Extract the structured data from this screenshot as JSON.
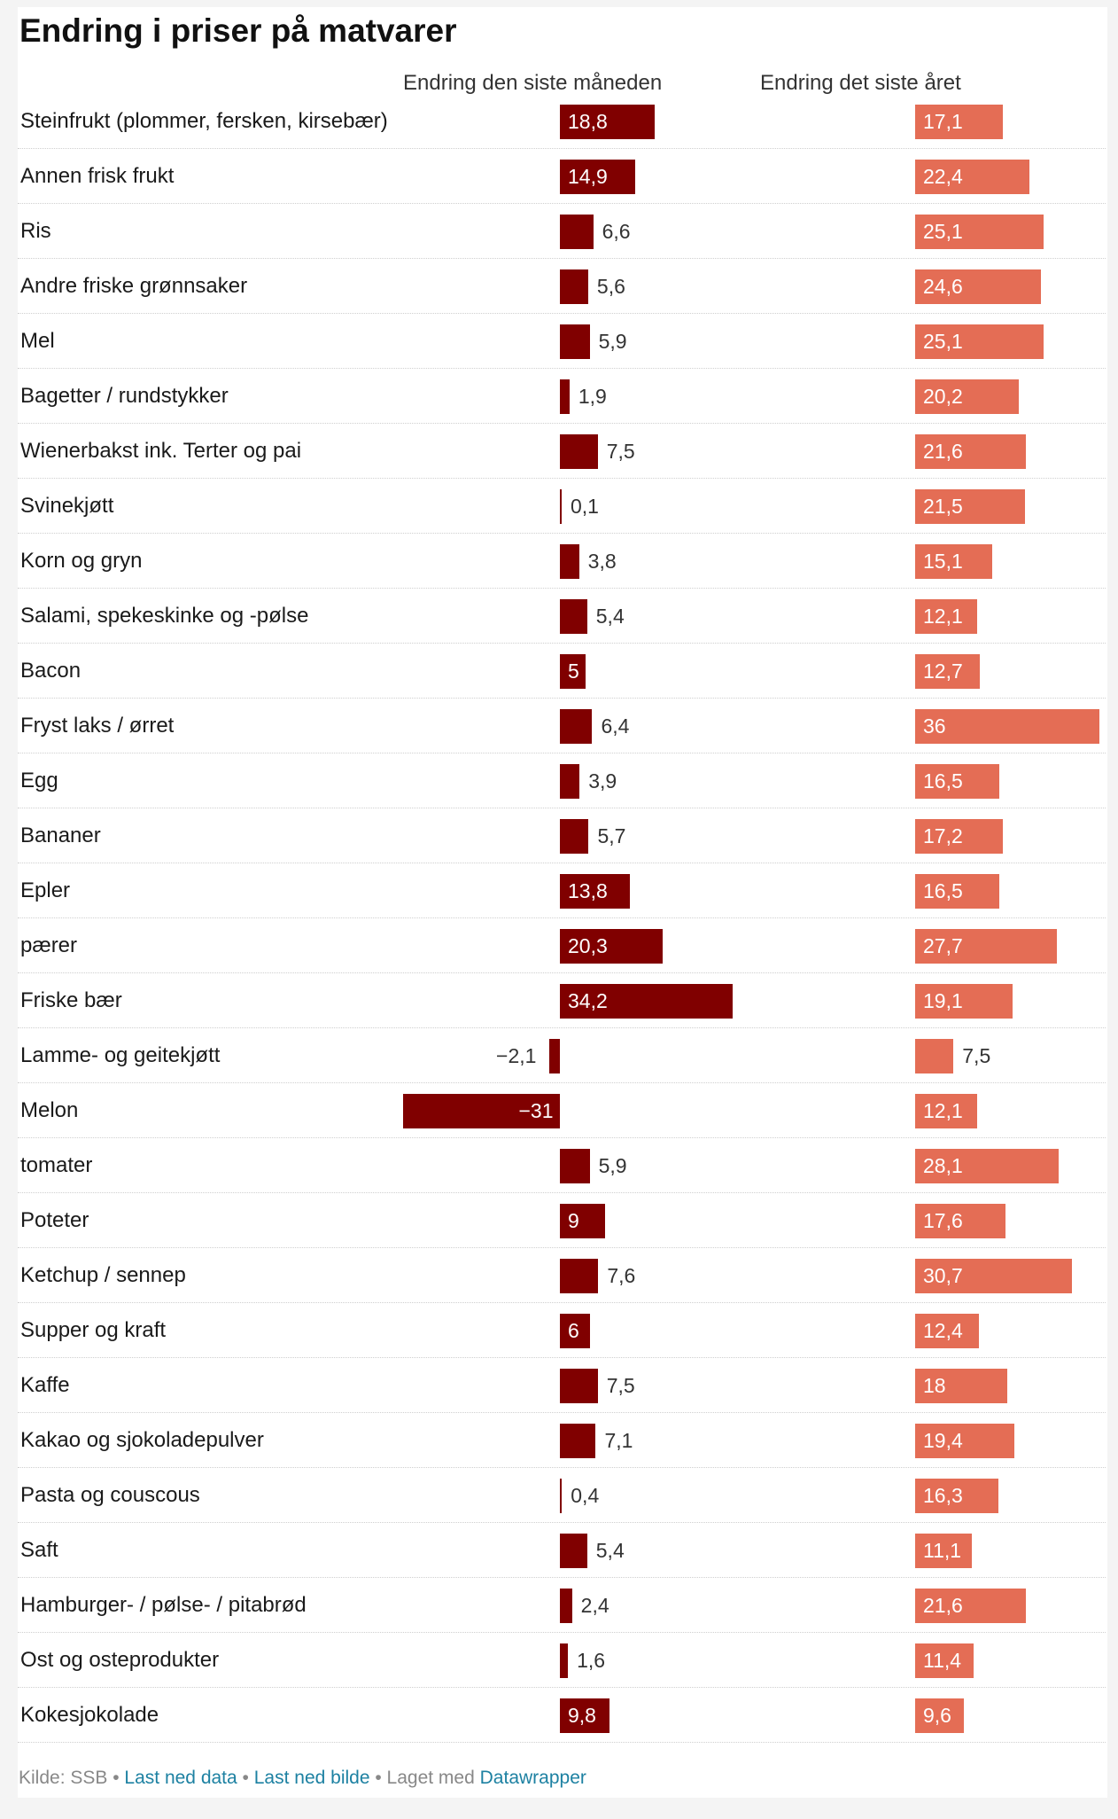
{
  "chart_data": {
    "type": "bar",
    "title": "Endring i priser på matvarer",
    "categories": [
      "Steinfrukt (plommer, fersken, kirsebær)",
      "Annen frisk frukt",
      "Ris",
      "Andre friske grønnsaker",
      "Mel",
      "Bagetter / rundstykker",
      "Wienerbakst ink. Terter og pai",
      "Svinekjøtt",
      "Korn og gryn",
      "Salami, spekeskinke og -pølse",
      "Bacon",
      "Fryst laks / ørret",
      "Egg",
      "Bananer",
      "Epler",
      "pærer",
      "Friske bær",
      "Lamme- og geitekjøtt",
      "Melon",
      "tomater",
      "Poteter",
      "Ketchup / sennep",
      "Supper og kraft",
      "Kaffe",
      "Kakao og sjokoladepulver",
      "Pasta og couscous",
      "Saft",
      "Hamburger- / pølse- / pitabrød",
      "Ost og osteprodukter",
      "Kokesjokolade"
    ],
    "series": [
      {
        "name": "Endring den siste måneden",
        "color": "#800000",
        "values": [
          18.8,
          14.9,
          6.6,
          5.6,
          5.9,
          1.9,
          7.5,
          0.1,
          3.8,
          5.4,
          5,
          6.4,
          3.9,
          5.7,
          13.8,
          20.3,
          34.2,
          -2.1,
          -31,
          5.9,
          9,
          7.6,
          6,
          7.5,
          7.1,
          0.4,
          5.4,
          2.4,
          1.6,
          9.8
        ],
        "labels": [
          "18,8",
          "14,9",
          "6,6",
          "5,6",
          "5,9",
          "1,9",
          "7,5",
          "0,1",
          "3,8",
          "5,4",
          "5",
          "6,4",
          "3,9",
          "5,7",
          "13,8",
          "20,3",
          "34,2",
          "−2,1",
          "−31",
          "5,9",
          "9",
          "7,6",
          "6",
          "7,5",
          "7,1",
          "0,4",
          "5,4",
          "2,4",
          "1,6",
          "9,8"
        ]
      },
      {
        "name": "Endring det siste året",
        "color": "#e46d55",
        "values": [
          17.1,
          22.4,
          25.1,
          24.6,
          25.1,
          20.2,
          21.6,
          21.5,
          15.1,
          12.1,
          12.7,
          36,
          16.5,
          17.2,
          16.5,
          27.7,
          19.1,
          7.5,
          12.1,
          28.1,
          17.6,
          30.7,
          12.4,
          18,
          19.4,
          16.3,
          11.1,
          21.6,
          11.4,
          9.6
        ],
        "labels": [
          "17,1",
          "22,4",
          "25,1",
          "24,6",
          "25,1",
          "20,2",
          "21,6",
          "21,5",
          "15,1",
          "12,1",
          "12,7",
          "36",
          "16,5",
          "17,2",
          "16,5",
          "27,7",
          "19,1",
          "7,5",
          "12,1",
          "28,1",
          "17,6",
          "30,7",
          "12,4",
          "18",
          "19,4",
          "16,3",
          "11,1",
          "21,6",
          "11,4",
          "9,6"
        ]
      }
    ],
    "legend": "column-headers-top",
    "grid": false
  },
  "footer": {
    "source": "Kilde: SSB",
    "separator": " • ",
    "download_data": "Last ned data",
    "download_image": "Last ned bilde",
    "made_with": "Laget med",
    "datawrapper": "Datawrapper"
  }
}
